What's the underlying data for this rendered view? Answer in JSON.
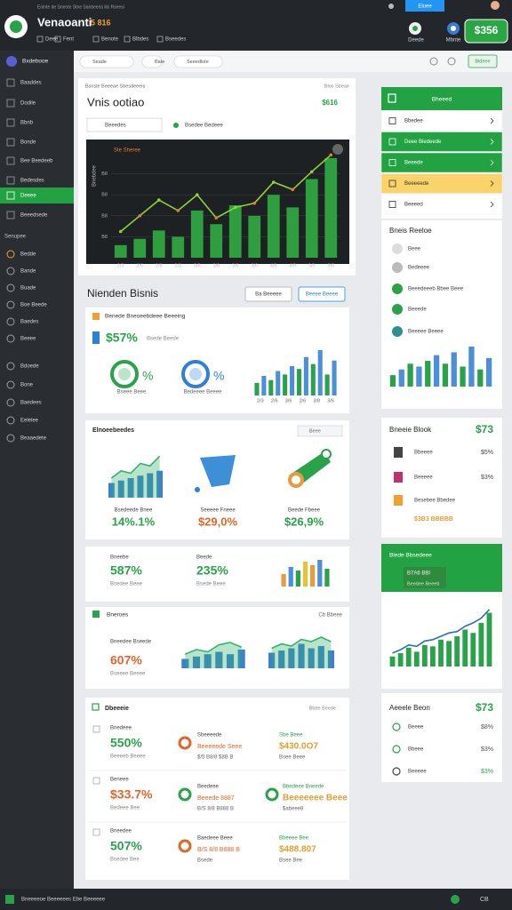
{
  "header": {
    "title": "Venaoanti",
    "badge": "5 816",
    "subtitle": "Eolnte de Sneote Stne Sanbeeris ilis Rseesi",
    "tabs": [
      "Deee",
      "Fent",
      "Benote",
      "Blbdes",
      "Bseedes"
    ],
    "top_button": "Eluee",
    "icon_labels": [
      "Deede",
      "Mbnte"
    ],
    "balance": "$356"
  },
  "toolbar": {
    "chips": [
      "Seade",
      "Bate",
      "Seeedlote"
    ],
    "action": "Bldeee"
  },
  "sidebar": {
    "brand": "Bxdebooe",
    "items": [
      "Baaddes",
      "Dodile",
      "Bbnb",
      "Bonde",
      "Bee Beedeeb",
      "Bedesdes",
      "Deeee",
      "Beeedsede"
    ],
    "active": 6,
    "section": "Senupee",
    "items2": [
      "Bedde",
      "Bande",
      "Buade",
      "Boe Beede",
      "Baedes",
      "Beeee",
      "Bdoede",
      "Bone",
      "Baedees",
      "Eelelee",
      "Beaaedete"
    ]
  },
  "main_card": {
    "breadcrumb": "Bsnsle Beeeae Sbesdeeeis",
    "right_note": "Blos Sbeae",
    "title": "Vnis ootiao",
    "value": "$616",
    "select": "Beeedes",
    "select2": "Bsedee Bedeee",
    "chart": {
      "axis_title": "Bnebdee",
      "annotation": "Ste Sheree",
      "ylim": [
        0,
        100
      ],
      "yticks": [
        {
          "value": 20,
          "label": "B8"
        },
        {
          "value": 40,
          "label": "B8"
        },
        {
          "value": 60,
          "label": "B8"
        },
        {
          "value": 80,
          "label": "B8"
        }
      ],
      "categories": [
        "2/3",
        "2/6",
        "2/8",
        "2/3",
        "3/6",
        "2/8",
        "3/6",
        "3/6",
        "4/6",
        "4/8",
        "3/6",
        "3/6"
      ],
      "values": [
        12,
        18,
        26,
        20,
        45,
        32,
        50,
        40,
        60,
        48,
        75,
        95
      ],
      "line": [
        25,
        40,
        55,
        45,
        60,
        38,
        48,
        52,
        72,
        65,
        82,
        98
      ],
      "colors": [
        "#2e9e3f"
      ],
      "line_color": "#8fcf3a"
    }
  },
  "section": {
    "title": "Nienden Bisnis",
    "buttons": [
      "Ba Beeeee",
      "Beeee Beeee"
    ]
  },
  "card1": {
    "header": "Benede Bneoeebdeee Beeeing",
    "value": "$57%",
    "sublabel": "Bsede Beede",
    "gauges": [
      {
        "label": "%",
        "caption": "Bseee Beee",
        "color": "#2aa24a"
      },
      {
        "label": "%",
        "caption": "Bedeeee Beeee",
        "color": "#2f7fd6"
      }
    ],
    "chart": {
      "ylim": [
        0,
        70
      ],
      "values": [
        18,
        28,
        22,
        35,
        30,
        42,
        38,
        55,
        45,
        65,
        30,
        50
      ],
      "colors": [
        "#2aa24a",
        "#4a8fd8"
      ],
      "categories": [
        "2/3",
        "2/6",
        "3/6",
        "2/6",
        "3/8",
        "3/6"
      ]
    }
  },
  "card2": {
    "header": "Elnoeebeedes",
    "filter": "Beee",
    "items": [
      {
        "caption": "Bsedeede Bnee",
        "value": "14%.1%",
        "color": "#2aa24a"
      },
      {
        "caption": "Seeeee Fneee",
        "value": "$29,0%",
        "color": "#e0662a"
      },
      {
        "caption": "Beede Fbeee",
        "value": "$26,9%",
        "color": "#2aa24a"
      }
    ],
    "chart": {
      "ylim": [
        0,
        100
      ],
      "values": [
        30,
        35,
        40,
        45,
        50,
        55
      ],
      "line": [
        40,
        55,
        50,
        70,
        65,
        85
      ],
      "colors": [
        "#3d7fcf"
      ],
      "line_color": "#33b36b"
    }
  },
  "card3": {
    "items": [
      {
        "label": "Bneebe",
        "value": "587%",
        "sub": "Bsedee Beee"
      },
      {
        "label": "Beede",
        "value": "235%",
        "sub": "Bsede Beee"
      }
    ],
    "chart": {
      "ylim": [
        0,
        80
      ],
      "values": [
        35,
        55,
        45,
        70,
        60,
        75,
        50
      ],
      "colors": [
        "#e99a3c",
        "#4a8fd8",
        "#2aa24a",
        "#e3c23c"
      ]
    }
  },
  "card4": {
    "header": "Bneroes",
    "right": "Cb Bbeee",
    "label": "Bneedee Bseede",
    "value": "607%",
    "sub": "Bseeee Beeee",
    "chart1": {
      "ylim": [
        0,
        70
      ],
      "values": [
        20,
        25,
        30,
        35,
        30,
        40
      ],
      "line": [
        30,
        40,
        35,
        50,
        55,
        45
      ],
      "colors": [
        "#3d7fcf"
      ],
      "line_color": "#33b36b"
    },
    "chart2": {
      "ylim": [
        0,
        80
      ],
      "values": [
        35,
        40,
        45,
        55,
        45,
        50,
        40
      ],
      "line": [
        45,
        55,
        50,
        65,
        60,
        70,
        60
      ],
      "colors": [
        "#3d7fcf"
      ],
      "line_color": "#33b36b"
    }
  },
  "card5": {
    "header": "Dbeeeie",
    "right": "Bbee Beede",
    "rows": [
      {
        "label": "Bnedeee",
        "value": "550%",
        "sub": "Beeeeb Beeee",
        "mid_title": "Sbeeeede",
        "mid_value": "Beeeeede Seee",
        "mid_sub": "$/5 B8/8 $8B B",
        "right_title": "Sbe Beee",
        "right_value": "$430.0O7",
        "right_sub": "Bsee Beee",
        "color": "#2aa24a"
      },
      {
        "label": "Beneee",
        "value": "$33.7%",
        "sub": "Bedeee Bee",
        "mid_title": "Beedeee",
        "mid_value": "Beeede 8887",
        "mid_sub": "B/S 8/8 B888 B",
        "right_title": "Bbedeee Bneede",
        "right_value": "Beeeeeee Beee",
        "right_sub": "$abeee8",
        "color": "#e0662a"
      },
      {
        "label": "Bneedee",
        "value": "507%",
        "sub": "Bsedee Bee",
        "mid_title": "Baedeee Beee",
        "mid_value": "B/S 8/8 B888 B",
        "mid_sub": "Bsede",
        "right_title": "Bbeeee Bee",
        "right_value": "$488.807",
        "right_sub": "Bsee Bee",
        "color": "#2aa24a"
      }
    ]
  },
  "menu": {
    "header": "Bheeed",
    "items": [
      {
        "label": "Bbedee",
        "style": "plain"
      },
      {
        "label": "Deee Bledeede",
        "style": "green"
      },
      {
        "label": "Beeede",
        "style": "green"
      },
      {
        "label": "Beeeeede",
        "style": "yellow"
      },
      {
        "label": "Beeeed",
        "style": "plain"
      }
    ]
  },
  "list_card": {
    "title": "Bneis Reeloe",
    "items": [
      "Beee",
      "Bedeeee",
      "Beeedeeeb Bbee Beee",
      "Beeede",
      "Beeeee Beeee"
    ],
    "chart": {
      "ylim": [
        0,
        70
      ],
      "values": [
        20,
        30,
        40,
        35,
        45,
        55,
        40,
        60,
        35,
        70,
        30,
        50
      ],
      "colors": [
        "#2aa24a",
        "#4a8fd8"
      ]
    }
  },
  "price_card": {
    "title": "Bneeie Blook",
    "value": "$73",
    "rows": [
      {
        "label": "Bbeeee",
        "value": "$5%"
      },
      {
        "label": "Beeeee",
        "value": "$3%"
      },
      {
        "label": "Besebee Bbedee",
        "value": "$3B3 BBBBB"
      }
    ]
  },
  "chart_card": {
    "title": "Blede Bbsedeee",
    "sub": "B7A6 BBI",
    "sub2": "Beedee Beeeb",
    "chart": {
      "ylim": [
        0,
        90
      ],
      "values": [
        15,
        20,
        28,
        22,
        32,
        30,
        40,
        38,
        45,
        55,
        50,
        65,
        80
      ],
      "line": [
        20,
        25,
        32,
        30,
        38,
        40,
        45,
        50,
        52,
        60,
        65,
        72,
        85
      ],
      "colors": [
        "#2aa24a"
      ],
      "line_color": "#2f6fb0"
    }
  },
  "bottom_card": {
    "title": "Aeeele Beon",
    "value": "$73",
    "rows": [
      {
        "label": "Beeee",
        "value": "$8%"
      },
      {
        "label": "Bbeee",
        "value": "$3%"
      },
      {
        "label": "Beeeee",
        "value": "$3%"
      }
    ]
  },
  "footer": {
    "text": "Bneeeeoe Beeeeees Ebe Beeeeee",
    "right": "CB"
  }
}
